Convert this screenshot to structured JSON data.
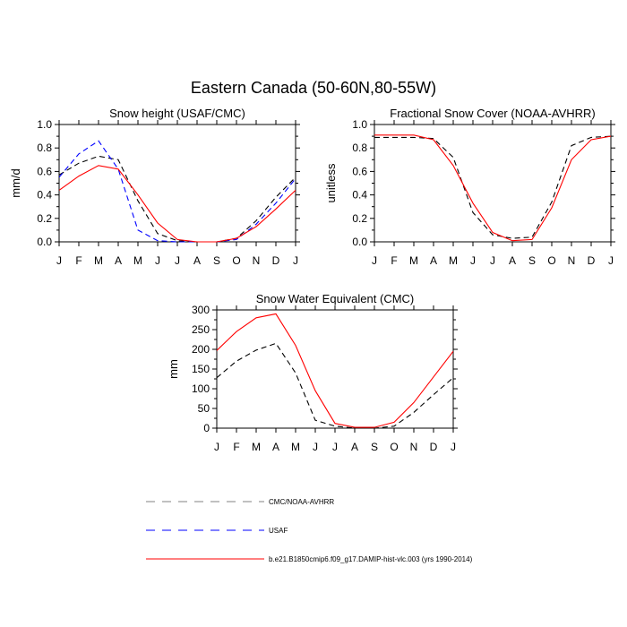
{
  "suptitle": "Eastern Canada (50-60N,80-55W)",
  "months": [
    "J",
    "F",
    "M",
    "A",
    "M",
    "J",
    "J",
    "A",
    "S",
    "O",
    "N",
    "D",
    "J"
  ],
  "legend": [
    {
      "label": "CMC/NOAA-AVHRR",
      "color": "#000000",
      "dash": true
    },
    {
      "label": "USAF",
      "color": "#0000ff",
      "dash": true
    },
    {
      "label": "b.e21.B1850cmip6.f09_g17.DAMIP-hist-vlc.003 (yrs 1990-2014)",
      "color": "#ff0000",
      "dash": false
    }
  ],
  "chart_data": [
    {
      "type": "line",
      "title": "Snow height (USAF/CMC)",
      "ylabel": "mm/d",
      "ylim": [
        0,
        1.0
      ],
      "yticks": [
        0.0,
        0.2,
        0.4,
        0.6,
        0.8,
        1.0
      ],
      "ytick_labels": [
        "0.0",
        "0.2",
        "0.4",
        "0.6",
        "0.8",
        "1.0"
      ],
      "series": [
        {
          "name": "CMC/NOAA-AVHRR",
          "color": "#000000",
          "dash": true,
          "values": [
            0.57,
            0.67,
            0.73,
            0.7,
            0.35,
            0.07,
            0.01,
            0.0,
            0.0,
            0.03,
            0.18,
            0.38,
            0.55
          ]
        },
        {
          "name": "USAF",
          "color": "#0000ff",
          "dash": true,
          "values": [
            0.55,
            0.75,
            0.86,
            0.62,
            0.1,
            0.01,
            0.0,
            0.0,
            0.0,
            0.02,
            0.15,
            0.33,
            0.54
          ]
        },
        {
          "name": "b.e21.B1850cmip6.f09_g17.DAMIP-hist-vlc.003 (yrs 1990-2014)",
          "color": "#ff0000",
          "dash": false,
          "values": [
            0.44,
            0.56,
            0.65,
            0.62,
            0.4,
            0.16,
            0.02,
            0.0,
            0.0,
            0.03,
            0.13,
            0.28,
            0.44
          ]
        }
      ]
    },
    {
      "type": "line",
      "title": "Fractional Snow Cover (NOAA-AVHRR)",
      "ylabel": "unitless",
      "ylim": [
        0,
        1.0
      ],
      "yticks": [
        0.0,
        0.2,
        0.4,
        0.6,
        0.8,
        1.0
      ],
      "ytick_labels": [
        "0.0",
        "0.2",
        "0.4",
        "0.6",
        "0.8",
        "1.0"
      ],
      "series": [
        {
          "name": "CMC/NOAA-AVHRR",
          "color": "#000000",
          "dash": true,
          "values": [
            0.89,
            0.89,
            0.89,
            0.88,
            0.72,
            0.25,
            0.06,
            0.03,
            0.04,
            0.34,
            0.82,
            0.89,
            0.9
          ]
        },
        {
          "name": "b.e21.B1850cmip6.f09_g17.DAMIP-hist-vlc.003 (yrs 1990-2014)",
          "color": "#ff0000",
          "dash": false,
          "values": [
            0.91,
            0.91,
            0.91,
            0.87,
            0.65,
            0.33,
            0.08,
            0.01,
            0.02,
            0.29,
            0.7,
            0.87,
            0.9
          ]
        }
      ]
    },
    {
      "type": "line",
      "title": "Snow Water Equivalent (CMC)",
      "ylabel": "mm",
      "ylim": [
        0,
        300
      ],
      "yticks": [
        0,
        50,
        100,
        150,
        200,
        250,
        300
      ],
      "ytick_labels": [
        "0",
        "50",
        "100",
        "150",
        "200",
        "250",
        "300"
      ],
      "series": [
        {
          "name": "CMC/NOAA-AVHRR",
          "color": "#000000",
          "dash": true,
          "values": [
            128,
            170,
            198,
            215,
            140,
            20,
            5,
            0,
            0,
            5,
            40,
            85,
            128
          ]
        },
        {
          "name": "b.e21.B1850cmip6.f09_g17.DAMIP-hist-vlc.003 (yrs 1990-2014)",
          "color": "#ff0000",
          "dash": false,
          "values": [
            197,
            245,
            280,
            290,
            210,
            95,
            12,
            2,
            2,
            15,
            65,
            130,
            195
          ]
        }
      ]
    }
  ]
}
